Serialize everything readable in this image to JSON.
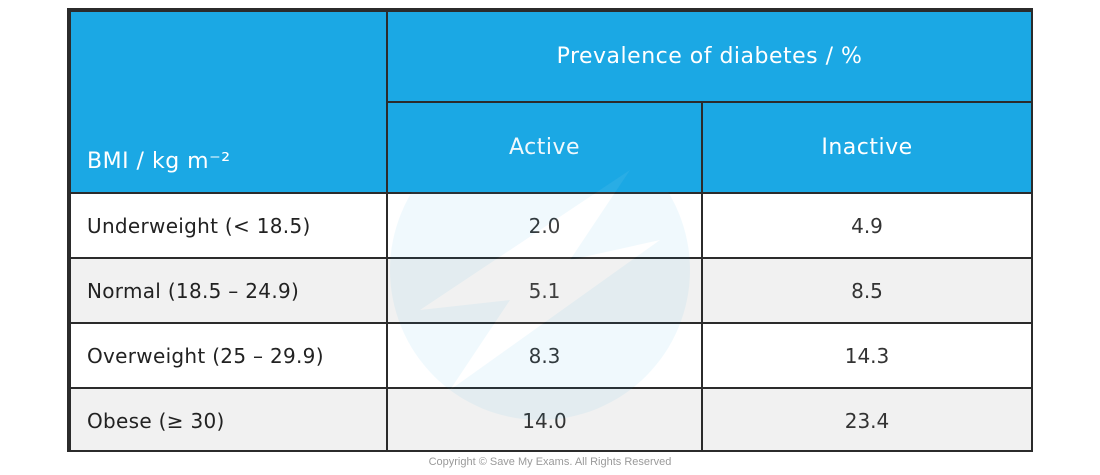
{
  "table": {
    "corner_header": "BMI / kg m⁻²",
    "group_header": "Prevalence of diabetes / %",
    "columns": [
      "Active",
      "Inactive"
    ],
    "rows": [
      {
        "label": "Underweight (< 18.5)",
        "active": "2.0",
        "inactive": "4.9"
      },
      {
        "label": "Normal (18.5 – 24.9)",
        "active": "5.1",
        "inactive": "8.5"
      },
      {
        "label": "Overweight (25 – 29.9)",
        "active": "8.3",
        "inactive": "14.3"
      },
      {
        "label": "Obese (≥ 30)",
        "active": "14.0",
        "inactive": "23.4"
      }
    ]
  },
  "colors": {
    "header_bg": "#1ba8e4",
    "header_text": "#ffffff",
    "border": "#2b2b2b",
    "alt_row": "#f1f1f1"
  },
  "footer": {
    "copyright": "Copyright © Save My Exams. All Rights Reserved"
  }
}
